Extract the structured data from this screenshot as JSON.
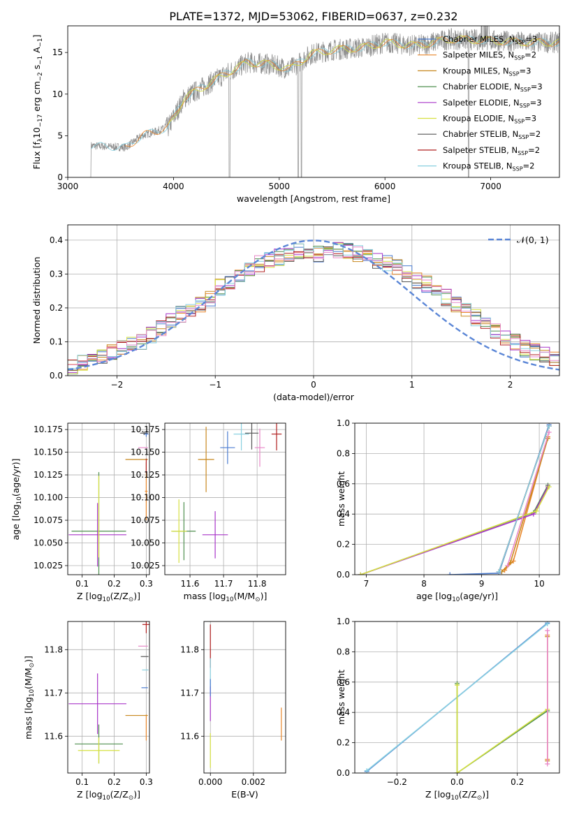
{
  "title": "PLATE=1372, MJD=53062, FIBERID=0637, z=0.232",
  "colors": {
    "Chabrier MILES": "#4a7bd0",
    "Salpeter MILES": "#e8862a",
    "Kroupa MILES": "#c8881e",
    "Chabrier ELODIE": "#4f8f4f",
    "Salpeter ELODIE": "#a733c8",
    "Kroupa ELODIE": "#d6e040",
    "Chabrier STELIB": "#555555",
    "Salpeter STELIB": "#b01e1e",
    "Kroupa STELIB": "#88d0e0",
    "Pink": "#e888c8",
    "Normal": "#5b86d6",
    "Data": "#8c8c8c"
  },
  "chart_data": [
    {
      "type": "line",
      "id": "spectrum",
      "xlabel": "wavelength [Angstrom, rest frame]",
      "ylabel_parts": [
        "Flux [f",
        "λ",
        "10",
        "−17",
        " erg cm",
        "−2",
        " s",
        "−1",
        " A",
        "−1",
        "]"
      ],
      "xlim": [
        3000,
        7650
      ],
      "ylim": [
        0,
        18.2
      ],
      "xticks": [
        3000,
        4000,
        5000,
        6000,
        7000
      ],
      "yticks": [
        0,
        5,
        10,
        15
      ],
      "grid": false,
      "legend_position": "top-right",
      "legend": [
        {
          "name": "Chabrier MILES",
          "ssp": "3"
        },
        {
          "name": "Salpeter MILES",
          "ssp": "2"
        },
        {
          "name": "Kroupa MILES",
          "ssp": "3"
        },
        {
          "name": "Chabrier ELODIE",
          "ssp": "3"
        },
        {
          "name": "Salpeter ELODIE",
          "ssp": "3"
        },
        {
          "name": "Kroupa ELODIE",
          "ssp": "3"
        },
        {
          "name": "Chabrier STELIB",
          "ssp": "2"
        },
        {
          "name": "Salpeter STELIB",
          "ssp": "2"
        },
        {
          "name": "Kroupa STELIB",
          "ssp": "2"
        }
      ],
      "legend_ssp_label": [
        "N",
        "SSP",
        "="
      ],
      "continuum": [
        [
          3220,
          3.8
        ],
        [
          3550,
          3.6
        ],
        [
          3700,
          5.0
        ],
        [
          3950,
          6.0
        ],
        [
          4100,
          9.5
        ],
        [
          4300,
          11.0
        ],
        [
          4500,
          12.5
        ],
        [
          4700,
          13.8
        ],
        [
          4900,
          13.6
        ],
        [
          5100,
          13.0
        ],
        [
          5300,
          14.8
        ],
        [
          5500,
          15.3
        ],
        [
          5800,
          15.6
        ],
        [
          6000,
          16.2
        ],
        [
          6300,
          15.8
        ],
        [
          6600,
          16.6
        ],
        [
          6900,
          16.5
        ],
        [
          7200,
          16.3
        ],
        [
          7380,
          16.2
        ]
      ],
      "data_range": [
        3200,
        7650
      ]
    },
    {
      "type": "step",
      "id": "residuals",
      "xlabel": "(data-model)/error",
      "ylabel": "Normed distribution",
      "xlim": [
        -2.5,
        2.5
      ],
      "ylim": [
        0,
        0.445
      ],
      "xticks": [
        -2,
        -1,
        0,
        1,
        2
      ],
      "yticks": [
        0.0,
        0.1,
        0.2,
        0.3,
        0.4
      ],
      "ytick_labels": [
        "0.0",
        "0.1",
        "0.2",
        "0.3",
        "0.4"
      ],
      "xtick_labels": [
        "−2",
        "−1",
        "0",
        "1",
        "2"
      ],
      "grid": true,
      "bin_width": 0.1,
      "bin_start": -2.5,
      "base": [
        0.03,
        0.04,
        0.05,
        0.06,
        0.07,
        0.08,
        0.09,
        0.1,
        0.12,
        0.14,
        0.16,
        0.18,
        0.19,
        0.21,
        0.23,
        0.26,
        0.28,
        0.3,
        0.32,
        0.33,
        0.34,
        0.35,
        0.36,
        0.37,
        0.37,
        0.36,
        0.36,
        0.37,
        0.37,
        0.36,
        0.35,
        0.34,
        0.33,
        0.32,
        0.3,
        0.28,
        0.27,
        0.25,
        0.23,
        0.21,
        0.19,
        0.17,
        0.15,
        0.13,
        0.11,
        0.1,
        0.08,
        0.07,
        0.06,
        0.05
      ],
      "normal_label": "𝒩(0, 1)",
      "normal_legend_position": "top-right"
    },
    {
      "type": "scatter",
      "id": "age-vs-Z",
      "xlabel_parts": [
        "Z [log",
        "10",
        "(Z/Z",
        "⊙",
        ")]"
      ],
      "ylabel_parts": [
        "age  [log",
        "10",
        "(age/yr)]"
      ],
      "xlim": [
        0.055,
        0.31
      ],
      "ylim": [
        10.015,
        10.182
      ],
      "xticks": [
        0.1,
        0.2,
        0.3
      ],
      "xtick_labels": [
        "0.1",
        "0.2",
        "0.3"
      ],
      "yticks": [
        10.025,
        10.05,
        10.075,
        10.1,
        10.125,
        10.15,
        10.175
      ],
      "ytick_labels": [
        "10.025",
        "10.050",
        "10.075",
        "10.100",
        "10.125",
        "10.150",
        "10.175"
      ],
      "grid": true,
      "points": [
        {
          "series": "Chabrier MILES",
          "x": 0.3,
          "y": 10.17,
          "xerr": 0.007,
          "yerr": 0.003
        },
        {
          "series": "Salpeter MILES",
          "x": 0.3,
          "y": 10.107,
          "xerr": 0.004,
          "yerr": 0.032
        },
        {
          "series": "Kroupa MILES",
          "x": 0.27,
          "y": 10.142,
          "xerr": 0.035,
          "yerr": 0.0
        },
        {
          "series": "Chabrier ELODIE",
          "x": 0.152,
          "y": 10.063,
          "xerr": 0.085,
          "yerr": 0.065
        },
        {
          "series": "Salpeter ELODIE",
          "x": 0.148,
          "y": 10.059,
          "xerr": 0.09,
          "yerr": 0.035
        },
        {
          "series": "Kroupa ELODIE",
          "x": 0.152,
          "y": 10.079,
          "xerr": 0.0,
          "yerr": 0.045
        },
        {
          "series": "Chabrier STELIB",
          "x": 0.293,
          "y": 10.171,
          "xerr": 0.012,
          "yerr": 0.002
        },
        {
          "series": "Salpeter STELIB",
          "x": 0.3,
          "y": 10.135,
          "xerr": 0.0,
          "yerr": 0.008
        },
        {
          "series": "Pink",
          "x": 0.29,
          "y": 10.155,
          "xerr": 0.015,
          "yerr": 0.0
        }
      ]
    },
    {
      "type": "scatter",
      "id": "age-vs-mass",
      "xlabel_parts": [
        "mass [log",
        "10",
        "(M/M",
        "⊙",
        ")]"
      ],
      "xlim": [
        11.525,
        11.885
      ],
      "ylim": [
        10.015,
        10.182
      ],
      "xticks": [
        11.6,
        11.7,
        11.8
      ],
      "xtick_labels": [
        "11.6",
        "11.7",
        "11.8"
      ],
      "yticks": [
        10.025,
        10.05,
        10.075,
        10.1,
        10.125,
        10.15,
        10.175
      ],
      "ytick_labels": [
        "10.025",
        "10.050",
        "10.075",
        "10.100",
        "10.125",
        "10.150",
        "10.175"
      ],
      "grid": true,
      "points": [
        {
          "series": "Chabrier MILES",
          "x": 11.712,
          "y": 10.155,
          "xerr": 0.022,
          "yerr": 0.018
        },
        {
          "series": "Kroupa MILES",
          "x": 11.648,
          "y": 10.142,
          "xerr": 0.024,
          "yerr": 0.036
        },
        {
          "series": "Chabrier ELODIE",
          "x": 11.582,
          "y": 10.063,
          "xerr": 0.035,
          "yerr": 0.032
        },
        {
          "series": "Salpeter ELODIE",
          "x": 11.675,
          "y": 10.059,
          "xerr": 0.038,
          "yerr": 0.026
        },
        {
          "series": "Kroupa ELODIE",
          "x": 11.567,
          "y": 10.063,
          "xerr": 0.023,
          "yerr": 0.035
        },
        {
          "series": "Chabrier STELIB",
          "x": 11.784,
          "y": 10.171,
          "xerr": 0.02,
          "yerr": 0.018
        },
        {
          "series": "Salpeter STELIB",
          "x": 11.858,
          "y": 10.17,
          "xerr": 0.015,
          "yerr": 0.018
        },
        {
          "series": "Kroupa STELIB",
          "x": 11.753,
          "y": 10.17,
          "xerr": 0.023,
          "yerr": 0.018
        },
        {
          "series": "Pink",
          "x": 11.808,
          "y": 10.155,
          "xerr": 0.015,
          "yerr": 0.021
        }
      ]
    },
    {
      "type": "line",
      "id": "weight-vs-age",
      "xlabel_parts": [
        "age  [log",
        "10",
        "(age/yr)]"
      ],
      "ylabel": "mass weight",
      "xlim": [
        6.8,
        10.35
      ],
      "ylim": [
        0,
        1.0
      ],
      "xticks": [
        7,
        8,
        9,
        10
      ],
      "xtick_labels": [
        "7",
        "8",
        "9",
        "10"
      ],
      "yticks": [
        0.0,
        0.2,
        0.4,
        0.6,
        0.8,
        1.0
      ],
      "ytick_labels": [
        "0.0",
        "0.2",
        "0.4",
        "0.6",
        "0.8",
        "1.0"
      ],
      "grid": true,
      "series": [
        {
          "name": "Chabrier MILES",
          "x": [
            8.45,
            9.3,
            10.17
          ],
          "y": [
            0.0,
            0.01,
            0.99
          ]
        },
        {
          "name": "Salpeter MILES",
          "x": [
            9.4,
            9.55,
            10.15
          ],
          "y": [
            0.03,
            0.09,
            0.91
          ]
        },
        {
          "name": "Kroupa MILES",
          "x": [
            9.35,
            9.5,
            10.15
          ],
          "y": [
            0.02,
            0.08,
            0.9
          ]
        },
        {
          "name": "Chabrier ELODIE",
          "x": [
            6.9,
            9.9,
            10.15
          ],
          "y": [
            0.0,
            0.41,
            0.59
          ]
        },
        {
          "name": "Salpeter ELODIE",
          "x": [
            6.9,
            9.9,
            10.15
          ],
          "y": [
            0.0,
            0.4,
            0.58
          ]
        },
        {
          "name": "Kroupa ELODIE",
          "x": [
            6.9,
            9.95,
            10.17
          ],
          "y": [
            0.0,
            0.42,
            0.58
          ]
        },
        {
          "name": "Chabrier STELIB",
          "x": [
            9.3,
            10.17
          ],
          "y": [
            0.02,
            0.98
          ]
        },
        {
          "name": "Salpeter STELIB",
          "x": [
            9.3,
            10.17
          ],
          "y": [
            0.02,
            0.98
          ]
        },
        {
          "name": "Kroupa STELIB",
          "x": [
            9.3,
            10.17
          ],
          "y": [
            0.02,
            0.98
          ]
        },
        {
          "name": "Pink",
          "x": [
            9.45,
            10.17
          ],
          "y": [
            0.06,
            0.94
          ]
        }
      ]
    },
    {
      "type": "scatter",
      "id": "mass-vs-Z",
      "xlabel_parts": [
        "Z [log",
        "10",
        "(Z/Z",
        "⊙",
        ")]"
      ],
      "ylabel_parts": [
        "mass [log",
        "10",
        "(M/M",
        "⊙",
        ")]"
      ],
      "xlim": [
        0.055,
        0.31
      ],
      "ylim": [
        11.515,
        11.865
      ],
      "xticks": [
        0.1,
        0.2,
        0.3
      ],
      "xtick_labels": [
        "0.1",
        "0.2",
        "0.3"
      ],
      "yticks": [
        11.6,
        11.7,
        11.8
      ],
      "ytick_labels": [
        "11.6",
        "11.7",
        "11.8"
      ],
      "grid": true,
      "points": [
        {
          "series": "Chabrier MILES",
          "x": 0.295,
          "y": 11.712,
          "xerr": 0.01,
          "yerr": 0.0
        },
        {
          "series": "Salpeter MILES",
          "x": 0.3,
          "y": 11.62,
          "xerr": 0.0,
          "yerr": 0.03
        },
        {
          "series": "Kroupa MILES",
          "x": 0.27,
          "y": 11.648,
          "xerr": 0.035,
          "yerr": 0.0
        },
        {
          "series": "Chabrier ELODIE",
          "x": 0.152,
          "y": 11.582,
          "xerr": 0.075,
          "yerr": 0.045
        },
        {
          "series": "Salpeter ELODIE",
          "x": 0.148,
          "y": 11.675,
          "xerr": 0.09,
          "yerr": 0.07
        },
        {
          "series": "Kroupa ELODIE",
          "x": 0.152,
          "y": 11.567,
          "xerr": 0.065,
          "yerr": 0.03
        },
        {
          "series": "Chabrier STELIB",
          "x": 0.295,
          "y": 11.784,
          "xerr": 0.012,
          "yerr": 0.0
        },
        {
          "series": "Salpeter STELIB",
          "x": 0.3,
          "y": 11.858,
          "xerr": 0.012,
          "yerr": 0.02
        },
        {
          "series": "Kroupa STELIB",
          "x": 0.297,
          "y": 11.753,
          "xerr": 0.01,
          "yerr": 0.0
        },
        {
          "series": "Pink",
          "x": 0.29,
          "y": 11.808,
          "xerr": 0.015,
          "yerr": 0.0
        }
      ]
    },
    {
      "type": "scatter",
      "id": "mass-vs-EBV",
      "xlabel": "E(B-V)",
      "xlim": [
        -0.0003,
        0.0035
      ],
      "ylim": [
        11.515,
        11.865
      ],
      "xticks": [
        0.0,
        0.002
      ],
      "xtick_labels": [
        "0.000",
        "0.002"
      ],
      "yticks": [
        11.6,
        11.7,
        11.8
      ],
      "ytick_labels": [
        "11.6",
        "11.7",
        "11.8"
      ],
      "grid": true,
      "points": [
        {
          "series": "Salpeter STELIB",
          "x": 0.0,
          "y": 11.808,
          "xerr": 0.0,
          "yerr": 0.05
        },
        {
          "series": "Kroupa STELIB",
          "x": 0.0,
          "y": 11.74,
          "xerr": 0.0,
          "yerr": 0.04
        },
        {
          "series": "Salpeter ELODIE",
          "x": 0.0,
          "y": 11.675,
          "xerr": 0.0,
          "yerr": 0.04
        },
        {
          "series": "Kroupa ELODIE",
          "x": 0.0,
          "y": 11.567,
          "xerr": 0.0,
          "yerr": 0.04
        },
        {
          "series": "Chabrier MILES",
          "x": 0.0,
          "y": 11.712,
          "xerr": 0.0,
          "yerr": 0.02
        },
        {
          "series": "Salpeter MILES",
          "x": 0.0033,
          "y": 11.628,
          "xerr": 0.0,
          "yerr": 0.038
        }
      ]
    },
    {
      "type": "line",
      "id": "weight-vs-Z",
      "xlabel_parts": [
        "Z [log",
        "10",
        "(Z/Z",
        "⊙",
        ")]"
      ],
      "ylabel": "mass weight",
      "xlim": [
        -0.34,
        0.34
      ],
      "ylim": [
        0,
        1.0
      ],
      "xticks": [
        -0.2,
        0.0,
        0.2
      ],
      "xtick_labels": [
        "−0.2",
        "0.0",
        "0.2"
      ],
      "yticks": [
        0.0,
        0.2,
        0.4,
        0.6,
        0.8,
        1.0
      ],
      "ytick_labels": [
        "0.0",
        "0.2",
        "0.4",
        "0.6",
        "0.8",
        "1.0"
      ],
      "grid": true,
      "series": [
        {
          "name": "Chabrier MILES",
          "x": [
            -0.3,
            0.3
          ],
          "y": [
            0.01,
            0.99
          ]
        },
        {
          "name": "Kroupa STELIB",
          "x": [
            -0.3,
            0.3
          ],
          "y": [
            0.015,
            0.985
          ]
        },
        {
          "name": "Salpeter MILES",
          "x": [
            0.3,
            0.3
          ],
          "y": [
            0.09,
            0.91
          ]
        },
        {
          "name": "Kroupa MILES",
          "x": [
            0.3,
            0.3
          ],
          "y": [
            0.08,
            0.9
          ]
        },
        {
          "name": "Chabrier ELODIE",
          "x": [
            0.0,
            0.0,
            0.3
          ],
          "y": [
            0.59,
            0.0,
            0.41
          ]
        },
        {
          "name": "Kroupa ELODIE",
          "x": [
            0.0,
            0.0,
            0.3
          ],
          "y": [
            0.58,
            0.0,
            0.42
          ]
        },
        {
          "name": "Pink",
          "x": [
            0.3,
            0.3
          ],
          "y": [
            0.06,
            0.94
          ]
        }
      ]
    }
  ]
}
